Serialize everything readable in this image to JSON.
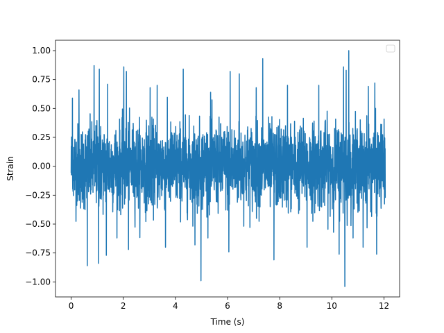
{
  "chart_data": {
    "type": "line",
    "title": "",
    "xlabel": "Time (s)",
    "ylabel": "Strain",
    "xlim": [
      -0.6,
      12.6
    ],
    "ylim": [
      -1.13,
      1.09
    ],
    "x_ticks": [
      0,
      2,
      4,
      6,
      8,
      10,
      12
    ],
    "x_tick_labels": [
      "0",
      "2",
      "4",
      "6",
      "8",
      "10",
      "12"
    ],
    "y_ticks": [
      1.0,
      0.75,
      0.5,
      0.25,
      0.0,
      -0.25,
      -0.5,
      -0.75,
      -1.0
    ],
    "y_tick_labels": [
      "1.00",
      "0.75",
      "0.50",
      "0.25",
      "0.00",
      "−0.25",
      "−0.50",
      "−0.75",
      "−1.00"
    ],
    "grid": false,
    "legend": {
      "placement": "top-right",
      "entries": []
    },
    "series": [
      {
        "color": "#1f77b4",
        "x_range": [
          0,
          12.05
        ],
        "description_stats": {
          "typical_band": [
            -0.4,
            0.4
          ]
        },
        "peaks": [
          {
            "x": 0.05,
            "y": 0.59
          },
          {
            "x": 0.3,
            "y": 0.66
          },
          {
            "x": 0.62,
            "y": -0.86
          },
          {
            "x": 0.88,
            "y": 0.87
          },
          {
            "x": 1.05,
            "y": -0.84
          },
          {
            "x": 1.08,
            "y": 0.84
          },
          {
            "x": 1.4,
            "y": 0.71
          },
          {
            "x": 1.35,
            "y": -0.77
          },
          {
            "x": 2.02,
            "y": 0.86
          },
          {
            "x": 2.12,
            "y": 0.82
          },
          {
            "x": 2.2,
            "y": -0.72
          },
          {
            "x": 3.03,
            "y": 0.68
          },
          {
            "x": 3.3,
            "y": 0.7
          },
          {
            "x": 3.62,
            "y": -0.7
          },
          {
            "x": 4.3,
            "y": 0.84
          },
          {
            "x": 4.75,
            "y": -0.68
          },
          {
            "x": 4.98,
            "y": -0.99
          },
          {
            "x": 5.35,
            "y": 0.64
          },
          {
            "x": 6.1,
            "y": 0.82
          },
          {
            "x": 6.05,
            "y": -0.74
          },
          {
            "x": 6.45,
            "y": 0.8
          },
          {
            "x": 7.1,
            "y": 0.68
          },
          {
            "x": 7.35,
            "y": 0.93
          },
          {
            "x": 7.78,
            "y": -0.81
          },
          {
            "x": 8.3,
            "y": 0.7
          },
          {
            "x": 9.05,
            "y": -0.7
          },
          {
            "x": 9.5,
            "y": 0.7
          },
          {
            "x": 10.28,
            "y": -0.76
          },
          {
            "x": 10.45,
            "y": 0.86
          },
          {
            "x": 10.5,
            "y": -1.04
          },
          {
            "x": 10.55,
            "y": 0.83
          },
          {
            "x": 10.65,
            "y": 1.0
          },
          {
            "x": 11.2,
            "y": -0.7
          },
          {
            "x": 11.4,
            "y": 0.69
          },
          {
            "x": 11.65,
            "y": 0.72
          },
          {
            "x": 11.72,
            "y": -0.76
          }
        ]
      }
    ]
  }
}
